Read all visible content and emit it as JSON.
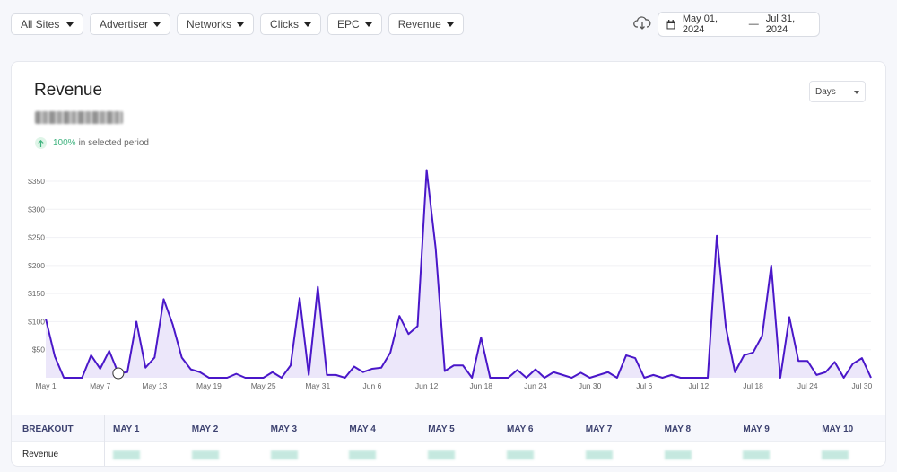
{
  "filters": [
    {
      "label": "All Sites",
      "wide": true
    },
    {
      "label": "Advertiser"
    },
    {
      "label": "Networks"
    },
    {
      "label": "Clicks"
    },
    {
      "label": "EPC"
    },
    {
      "label": "Revenue"
    }
  ],
  "date_range": {
    "start": "May 01, 2024",
    "separator": "—",
    "end": "Jul 31, 2024"
  },
  "icons": {
    "download": "cloud-download-icon",
    "calendar": "calendar-icon",
    "change": "arrow-up-icon"
  },
  "card": {
    "title": "Revenue",
    "change_pct": "100%",
    "change_text": "in selected period",
    "granularity": "Days"
  },
  "colors": {
    "line": "#4a17c9",
    "fill": "#ece7fa",
    "positive": "#3fb37f"
  },
  "chart_data": {
    "type": "area",
    "ylim": [
      0,
      350
    ],
    "y_ticks": [
      "$50",
      "$100",
      "$150",
      "$200",
      "$250",
      "$300",
      "$350"
    ],
    "y_tick_values": [
      50,
      100,
      150,
      200,
      250,
      300,
      350
    ],
    "x_tick_labels": [
      "May 1",
      "May 7",
      "May 13",
      "May 19",
      "May 25",
      "May 31",
      "Jun 6",
      "Jun 12",
      "Jun 18",
      "Jun 24",
      "Jun 30",
      "Jul 6",
      "Jul 12",
      "Jul 18",
      "Jul 24",
      "Jul 30"
    ],
    "x_tick_indices": [
      0,
      6,
      12,
      18,
      24,
      30,
      36,
      42,
      48,
      54,
      60,
      66,
      72,
      78,
      84,
      90
    ],
    "values": [
      105,
      38,
      0,
      0,
      0,
      40,
      16,
      48,
      8,
      10,
      100,
      18,
      36,
      140,
      95,
      36,
      15,
      10,
      0,
      0,
      0,
      7,
      0,
      0,
      0,
      10,
      0,
      22,
      142,
      5,
      162,
      5,
      5,
      0,
      20,
      10,
      16,
      18,
      45,
      110,
      78,
      92,
      370,
      230,
      12,
      22,
      22,
      0,
      72,
      0,
      0,
      0,
      14,
      0,
      15,
      0,
      10,
      5,
      0,
      9,
      0,
      5,
      10,
      0,
      40,
      35,
      0,
      5,
      0,
      5,
      0,
      0,
      0,
      0,
      253,
      90,
      10,
      40,
      45,
      75,
      200,
      0,
      108,
      30,
      30,
      5,
      10,
      28,
      0,
      25,
      35,
      0
    ]
  },
  "breakout": {
    "header": "BREAKOUT",
    "columns": [
      "MAY 1",
      "MAY 2",
      "MAY 3",
      "MAY 4",
      "MAY 5",
      "MAY 6",
      "MAY 7",
      "MAY 8",
      "MAY 9",
      "MAY 10"
    ],
    "row_label": "Revenue"
  }
}
